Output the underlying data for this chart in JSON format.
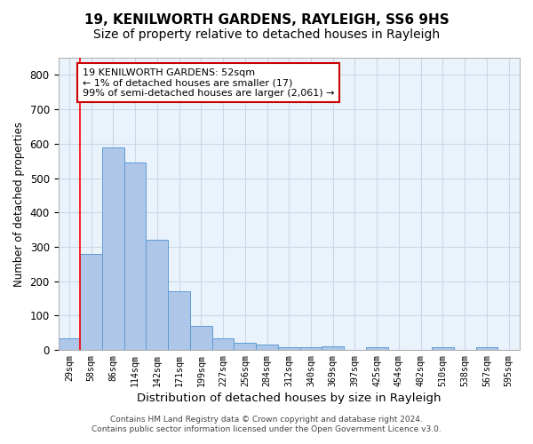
{
  "title": "19, KENILWORTH GARDENS, RAYLEIGH, SS6 9HS",
  "subtitle": "Size of property relative to detached houses in Rayleigh",
  "xlabel": "Distribution of detached houses by size in Rayleigh",
  "ylabel": "Number of detached properties",
  "bar_labels": [
    "29sqm",
    "58sqm",
    "86sqm",
    "114sqm",
    "142sqm",
    "171sqm",
    "199sqm",
    "227sqm",
    "256sqm",
    "284sqm",
    "312sqm",
    "340sqm",
    "369sqm",
    "397sqm",
    "425sqm",
    "454sqm",
    "482sqm",
    "510sqm",
    "538sqm",
    "567sqm",
    "595sqm"
  ],
  "bar_values": [
    35,
    280,
    590,
    545,
    320,
    170,
    70,
    35,
    20,
    15,
    8,
    7,
    10,
    0,
    8,
    0,
    0,
    8,
    0,
    8,
    0
  ],
  "bar_color": "#aec6e8",
  "bar_edge_color": "#5b9bd5",
  "red_line_index": 1,
  "annotation_text": "19 KENILWORTH GARDENS: 52sqm\n← 1% of detached houses are smaller (17)\n99% of semi-detached houses are larger (2,061) →",
  "annotation_box_color": "#ffffff",
  "annotation_box_edge": "#cc0000",
  "ylim": [
    0,
    850
  ],
  "yticks": [
    0,
    100,
    200,
    300,
    400,
    500,
    600,
    700,
    800
  ],
  "footer_line1": "Contains HM Land Registry data © Crown copyright and database right 2024.",
  "footer_line2": "Contains public sector information licensed under the Open Government Licence v3.0.",
  "background_color": "#ffffff",
  "grid_color": "#c8d8e8",
  "axes_bg_color": "#eaf3fb",
  "title_fontsize": 11,
  "subtitle_fontsize": 10
}
